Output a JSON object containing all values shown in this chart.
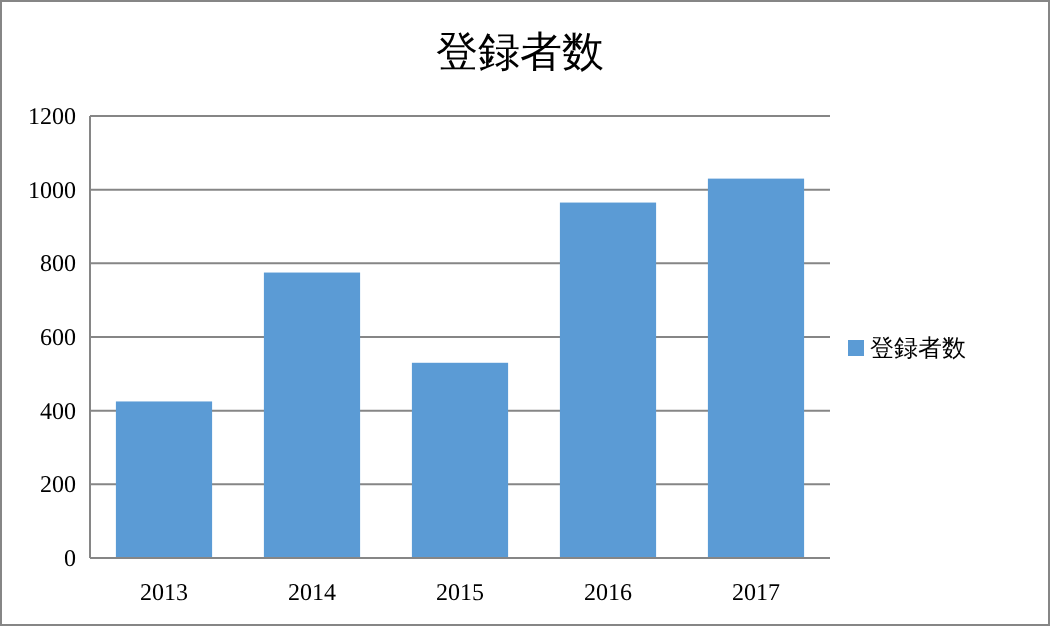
{
  "chart_data": {
    "type": "bar",
    "title": "登録者数",
    "categories": [
      "2013",
      "2014",
      "2015",
      "2016",
      "2017"
    ],
    "series": [
      {
        "name": "登録者数",
        "color": "#5b9bd5",
        "values": [
          425,
          775,
          530,
          965,
          1030
        ]
      }
    ],
    "ylim": [
      0,
      1200
    ],
    "yticks": [
      0,
      200,
      400,
      600,
      800,
      1000,
      1200
    ],
    "grid": "y",
    "legend": "right"
  }
}
